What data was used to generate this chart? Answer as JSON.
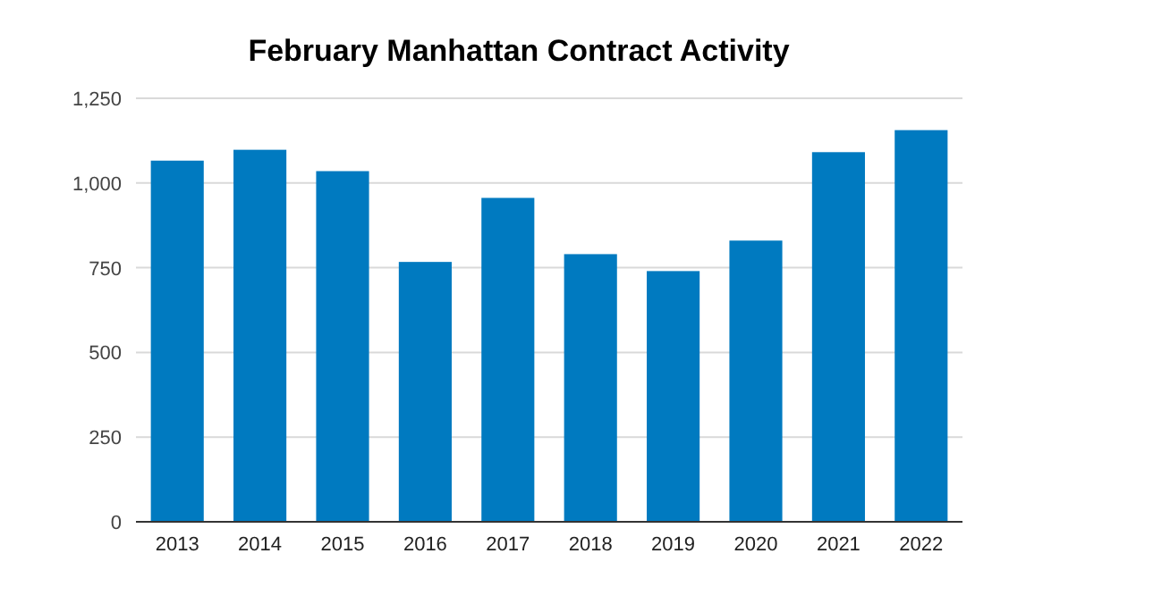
{
  "chart_data": {
    "type": "bar",
    "title": "February Manhattan Contract Activity",
    "categories": [
      "2013",
      "2014",
      "2015",
      "2016",
      "2017",
      "2018",
      "2019",
      "2020",
      "2021",
      "2022"
    ],
    "values": [
      1066,
      1098,
      1035,
      767,
      956,
      790,
      740,
      830,
      1091,
      1156
    ],
    "color": "#007ac0",
    "ylim": [
      0,
      1250
    ],
    "yticks": [
      0,
      {
        "value": 250,
        "label": "250"
      },
      {
        "value": 500,
        "label": "500"
      },
      {
        "value": 750,
        "label": "750"
      },
      {
        "value": 1000,
        "label": "1,000"
      },
      {
        "value": 1250,
        "label": "1,250"
      }
    ],
    "grid": "y"
  }
}
